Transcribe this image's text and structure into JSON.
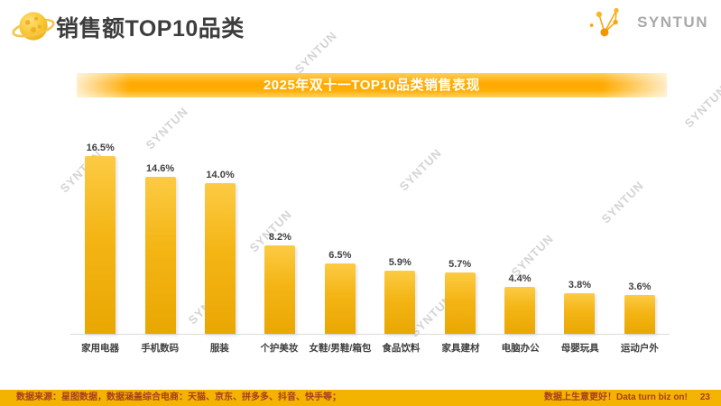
{
  "header": {
    "title": "销售额TOP10品类",
    "logo_text": "SYNTUN"
  },
  "banner": {
    "title": "2025年双十一TOP10品类销售表现"
  },
  "chart_data": {
    "type": "bar",
    "title": "2025年双十一TOP10品类销售表现",
    "categories": [
      "家用电器",
      "手机数码",
      "服装",
      "个护美妆",
      "女鞋/男鞋/箱包",
      "食品饮料",
      "家具建材",
      "电脑办公",
      "母婴玩具",
      "运动户外"
    ],
    "values": [
      16.5,
      14.6,
      14.0,
      8.2,
      6.5,
      5.9,
      5.7,
      4.4,
      3.8,
      3.6
    ],
    "labels": [
      "16.5%",
      "14.6%",
      "14.0%",
      "8.2%",
      "6.5%",
      "5.9%",
      "5.7%",
      "4.4%",
      "3.8%",
      "3.6%"
    ],
    "unit": "%",
    "ylim": [
      0,
      18
    ],
    "grid": false,
    "legend": false,
    "bar_color_top": "#FCCB44",
    "bar_color_mid": "#F4B515",
    "bar_color_bottom": "#E9A702"
  },
  "watermark": {
    "text": "SYNTUN"
  },
  "footer": {
    "source": "数据来源：星图数据，数据涵盖综合电商：天猫、京东、拼多多、抖音、快手等；",
    "slogan": "数据上生意更好！Data turn biz on!",
    "page": "23"
  }
}
